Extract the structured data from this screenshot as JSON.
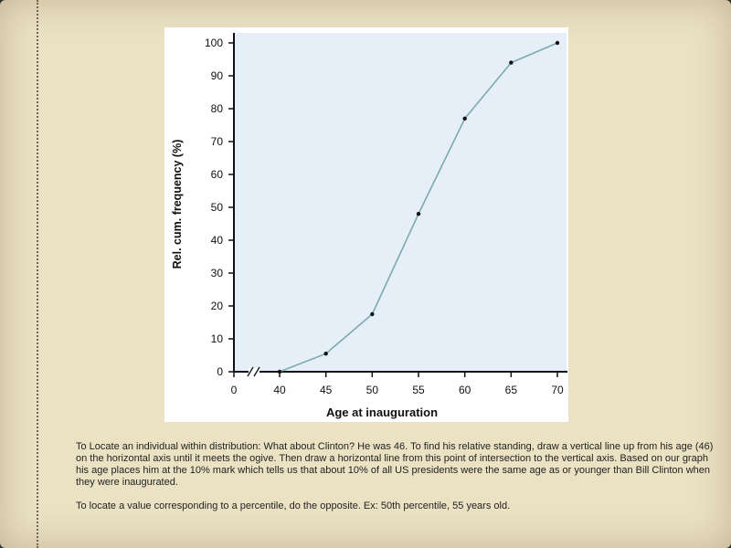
{
  "chart_data": {
    "type": "line",
    "xlabel": "Age at inauguration",
    "ylabel": "Rel. cum. frequency (%)",
    "x_ticks": [
      0,
      40,
      45,
      50,
      55,
      60,
      65,
      70
    ],
    "y_ticks": [
      0,
      10,
      20,
      30,
      40,
      50,
      60,
      70,
      80,
      90,
      100
    ],
    "x_axis_break": "between 0 and 40",
    "xlim": [
      0,
      70
    ],
    "ylim": [
      0,
      100
    ],
    "grid": false,
    "plot_background": "#e6eff8",
    "line_color": "#7aaab0",
    "series": [
      {
        "x": [
          40,
          45,
          50,
          55,
          60,
          65,
          70
        ],
        "y": [
          0,
          5.5,
          17.5,
          48,
          77,
          94,
          100
        ]
      }
    ]
  },
  "notes": {
    "paragraph1": "To Locate an individual within distribution:  What about Clinton? He was 46.  To find his relative standing, draw a vertical line up from his age (46) on the horizontal axis until it meets the ogive.  Then draw a horizontal line from this point of intersection to the vertical axis.  Based on our graph his age places him at the 10% mark which tells us that about 10% of all US presidents were the same age as or younger than Bill Clinton when they were inaugurated.",
    "paragraph2": "To locate a value corresponding to a percentile, do the opposite.  Ex:  50th percentile, 55 years old."
  }
}
